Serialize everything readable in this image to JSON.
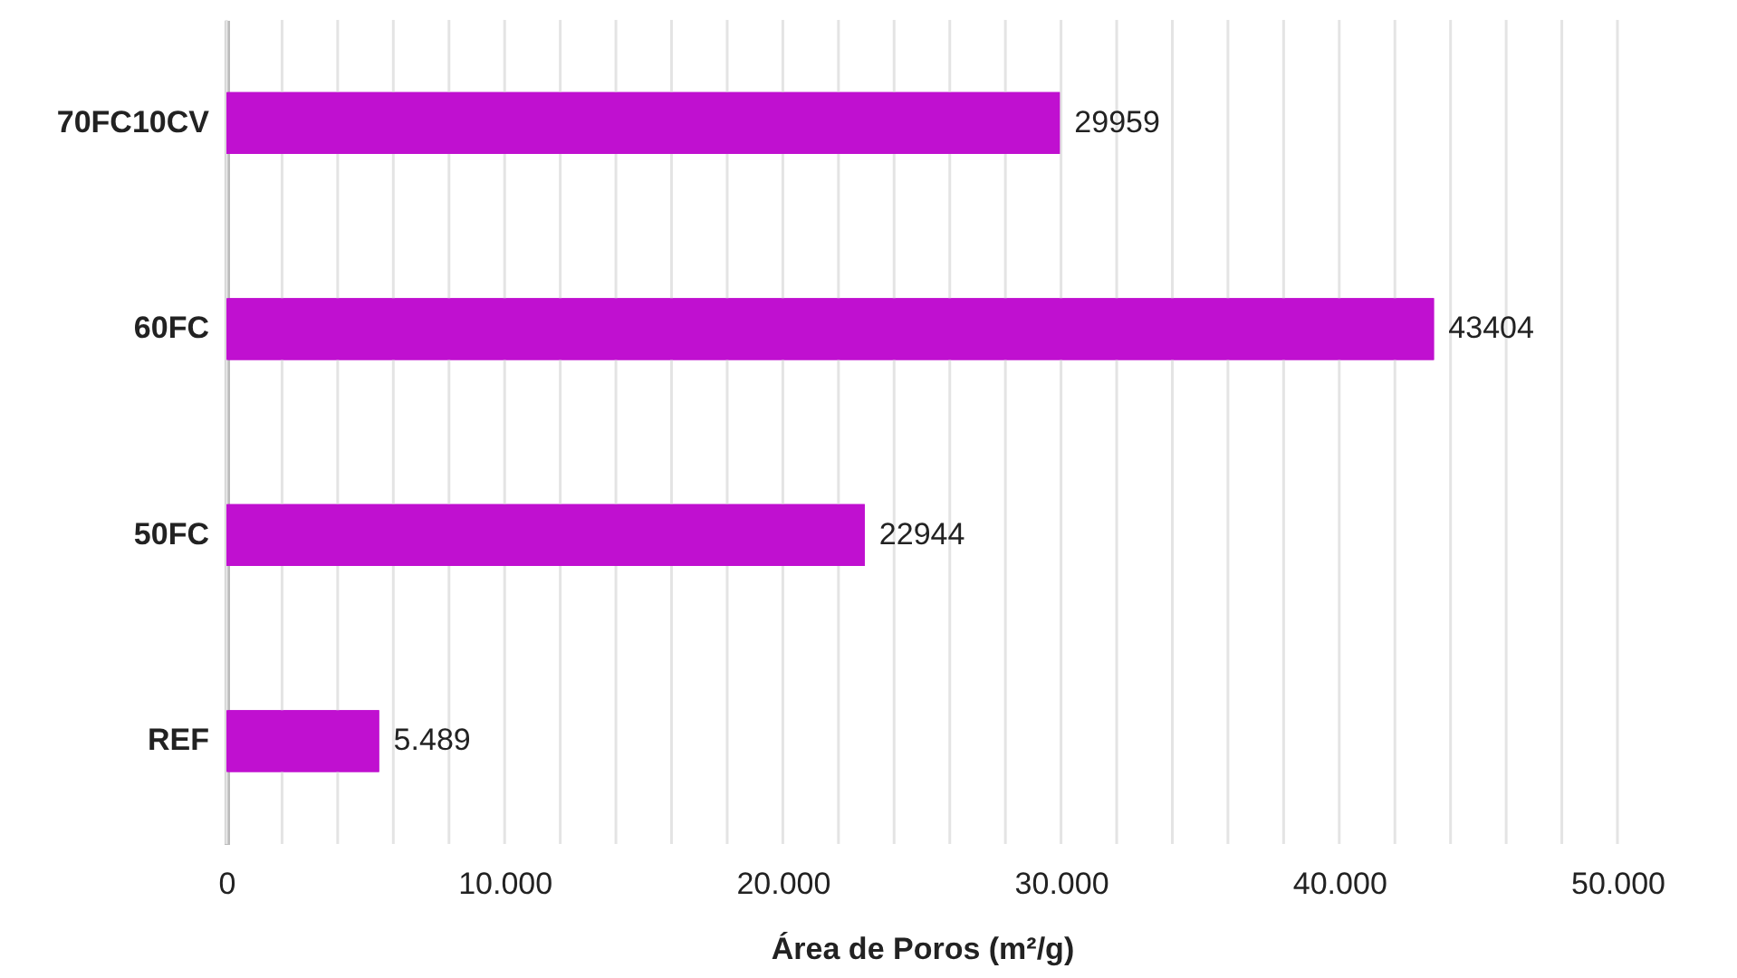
{
  "chart_data": {
    "type": "bar",
    "orientation": "horizontal",
    "xlabel": "Área de Poros (m²/g)",
    "categories": [
      "70FC10CV",
      "60FC",
      "50FC",
      "REF"
    ],
    "values": [
      29959,
      43404,
      22944,
      5489
    ],
    "value_labels": [
      "29959",
      "43404",
      "22944",
      "5.489"
    ],
    "color": "#c010d0",
    "xlim": [
      0,
      50000
    ],
    "xticks": [
      0,
      {
        "value": 2000,
        "label": null
      },
      {
        "value": 4000,
        "label": null
      },
      {
        "value": 6000,
        "label": null
      },
      {
        "value": 8000,
        "label": null
      },
      {
        "value": 10000,
        "label": "10.000"
      },
      {
        "value": 12000,
        "label": null
      },
      {
        "value": 14000,
        "label": null
      },
      {
        "value": 16000,
        "label": null
      },
      {
        "value": 18000,
        "label": null
      },
      {
        "value": 20000,
        "label": "20.000"
      },
      {
        "value": 22000,
        "label": null
      },
      {
        "value": 24000,
        "label": null
      },
      {
        "value": 26000,
        "label": null
      },
      {
        "value": 28000,
        "label": null
      },
      {
        "value": 30000,
        "label": "30.000"
      },
      {
        "value": 32000,
        "label": null
      },
      {
        "value": 34000,
        "label": null
      },
      {
        "value": 36000,
        "label": null
      },
      {
        "value": 38000,
        "label": null
      },
      {
        "value": 40000,
        "label": "40.000"
      },
      {
        "value": 42000,
        "label": null
      },
      {
        "value": 44000,
        "label": null
      },
      {
        "value": 46000,
        "label": null
      },
      {
        "value": 48000,
        "label": null
      },
      {
        "value": 50000,
        "label": "50.000"
      }
    ],
    "grid": "x"
  }
}
